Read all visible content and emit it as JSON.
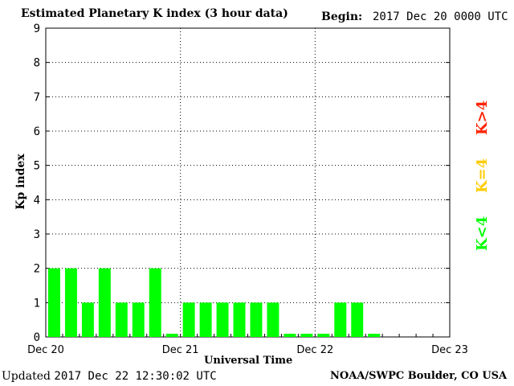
{
  "chart_data": {
    "type": "bar",
    "title": "Estimated Planetary K index (3 hour data)",
    "begin_label": "Begin:",
    "begin_value": "2017 Dec 20 0000 UTC",
    "ylabel": "Kp index",
    "xlabel": "Universal Time",
    "ylim": [
      0,
      9
    ],
    "yticks": [
      "0",
      "1",
      "2",
      "3",
      "4",
      "5",
      "6",
      "7",
      "8",
      "9"
    ],
    "xticks": [
      "Dec 20",
      "Dec 21",
      "Dec 22",
      "Dec 23"
    ],
    "grid": true,
    "values": [
      2,
      2,
      1,
      2,
      1,
      1,
      2,
      0,
      1,
      1,
      1,
      1,
      1,
      1,
      0,
      0,
      0,
      1,
      1,
      0
    ],
    "bar_color": "#00ff00",
    "legend": [
      {
        "label": "K<4",
        "color": "#00ff00"
      },
      {
        "label": "K=4",
        "color": "#ffcc00"
      },
      {
        "label": "K>4",
        "color": "#ff2200"
      }
    ]
  },
  "footer": {
    "updated_label": "Updated",
    "updated_value": "2017 Dec 22 12:30:02 UTC",
    "source": "NOAA/SWPC Boulder, CO USA"
  }
}
